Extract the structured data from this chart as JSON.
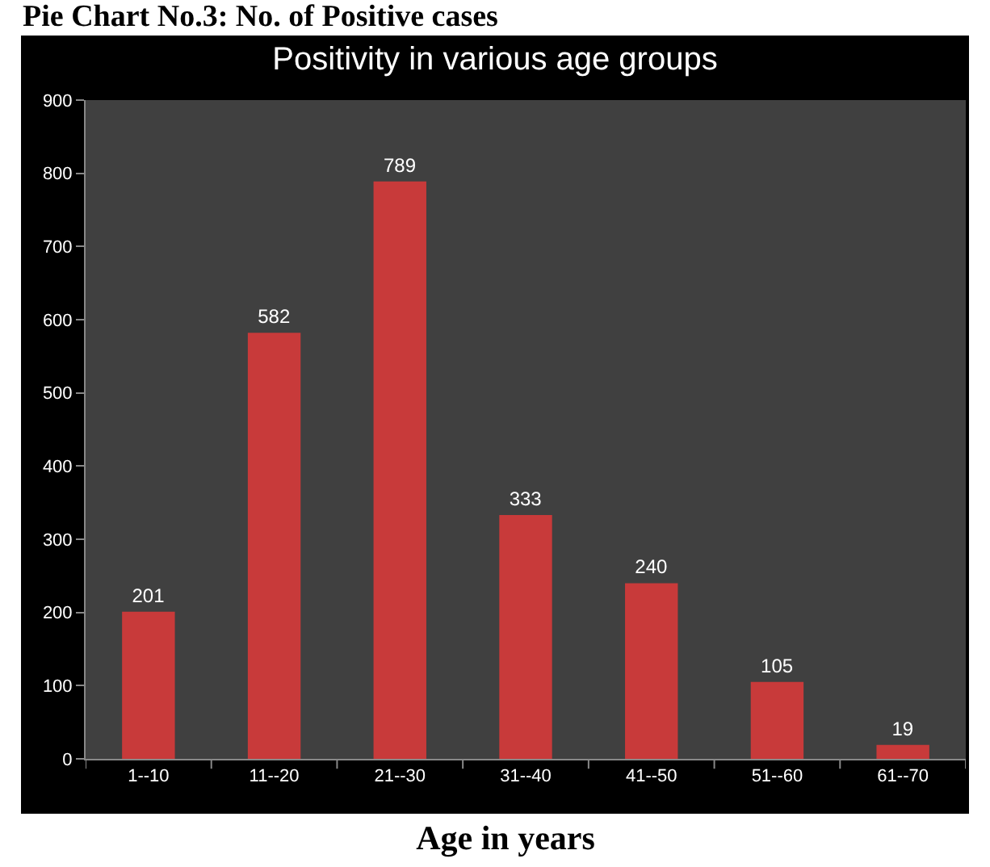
{
  "chart_data": {
    "type": "bar",
    "title": "Positivity in various age groups",
    "subtitle": "Pie Chart No.3: No. of Positive cases",
    "xlabel": "Age in years",
    "categories": [
      "1--10",
      "11--20",
      "21--30",
      "31--40",
      "41--50",
      "51--60",
      "61--70"
    ],
    "values": [
      201,
      582,
      789,
      333,
      240,
      105,
      19
    ],
    "color": "#c83a3a",
    "ylim": [
      0,
      900
    ],
    "yticks": [
      0,
      100,
      200,
      300,
      400,
      500,
      600,
      700,
      800,
      900
    ],
    "grid": false,
    "data_labels": true
  }
}
